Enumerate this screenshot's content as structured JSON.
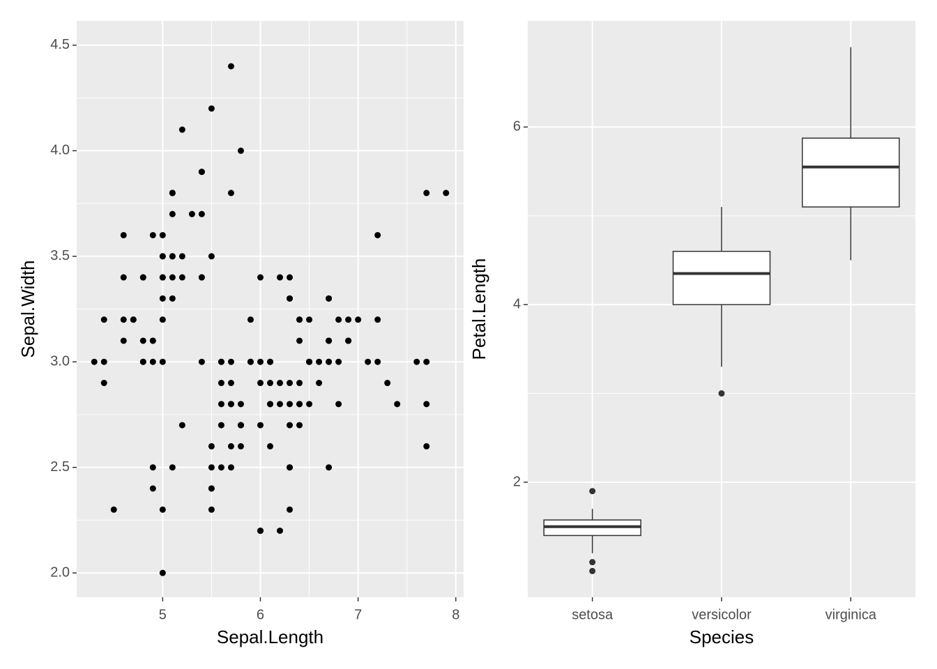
{
  "chart_data": [
    {
      "type": "scatter",
      "xlabel": "Sepal.Length",
      "ylabel": "Sepal.Width",
      "color": "#000000",
      "x": [
        5.1,
        4.9,
        4.7,
        4.6,
        5.0,
        5.4,
        4.6,
        5.0,
        4.4,
        4.9,
        5.4,
        4.8,
        4.8,
        4.3,
        5.8,
        5.7,
        5.4,
        5.1,
        5.7,
        5.1,
        5.4,
        5.1,
        4.6,
        5.1,
        4.8,
        5.0,
        5.0,
        5.2,
        5.2,
        4.7,
        4.8,
        5.4,
        5.2,
        5.5,
        4.9,
        5.0,
        5.5,
        4.9,
        4.4,
        5.1,
        5.0,
        4.5,
        4.4,
        5.0,
        5.1,
        4.8,
        5.1,
        4.6,
        5.3,
        5.0,
        7.0,
        6.4,
        6.9,
        5.5,
        6.5,
        5.7,
        6.3,
        4.9,
        6.6,
        5.2,
        5.0,
        5.9,
        6.0,
        6.1,
        5.6,
        6.7,
        5.6,
        5.8,
        6.2,
        5.6,
        5.9,
        6.1,
        6.3,
        6.1,
        6.4,
        6.6,
        6.8,
        6.7,
        6.0,
        5.7,
        5.5,
        5.5,
        5.8,
        6.0,
        5.4,
        6.0,
        6.7,
        6.3,
        5.6,
        5.5,
        5.5,
        6.1,
        5.8,
        5.0,
        5.6,
        5.7,
        5.7,
        6.2,
        5.1,
        5.7,
        6.3,
        5.8,
        7.1,
        6.3,
        6.5,
        7.6,
        4.9,
        7.3,
        6.7,
        7.2,
        6.5,
        6.4,
        6.8,
        5.7,
        5.8,
        6.4,
        6.5,
        7.7,
        7.7,
        6.0,
        6.9,
        5.6,
        7.7,
        6.3,
        6.7,
        7.2,
        6.2,
        6.1,
        6.4,
        7.2,
        7.4,
        7.9,
        6.4,
        6.3,
        6.1,
        7.7,
        6.3,
        6.4,
        6.0,
        6.9,
        6.7,
        6.9,
        5.8,
        6.8,
        6.7,
        6.7,
        6.3,
        6.5,
        6.2,
        5.9
      ],
      "values": [
        3.5,
        3.0,
        3.2,
        3.1,
        3.6,
        3.9,
        3.4,
        3.4,
        2.9,
        3.1,
        3.7,
        3.4,
        3.0,
        3.0,
        4.0,
        4.4,
        3.9,
        3.5,
        3.8,
        3.8,
        3.4,
        3.7,
        3.6,
        3.3,
        3.4,
        3.0,
        3.4,
        3.5,
        3.4,
        3.2,
        3.1,
        3.4,
        4.1,
        4.2,
        3.1,
        3.2,
        3.5,
        3.6,
        3.0,
        3.4,
        3.5,
        2.3,
        3.2,
        3.5,
        3.8,
        3.0,
        3.8,
        3.2,
        3.7,
        3.3,
        3.2,
        3.2,
        3.1,
        2.3,
        2.8,
        2.8,
        3.3,
        2.4,
        2.9,
        2.7,
        2.0,
        3.0,
        2.2,
        2.9,
        2.9,
        3.1,
        3.0,
        2.7,
        2.2,
        2.5,
        3.2,
        2.8,
        2.5,
        2.8,
        2.9,
        3.0,
        2.8,
        3.0,
        2.9,
        2.6,
        2.4,
        2.4,
        2.7,
        2.7,
        3.0,
        3.4,
        3.1,
        2.3,
        3.0,
        2.5,
        2.6,
        3.0,
        2.6,
        2.3,
        2.7,
        3.0,
        2.9,
        2.9,
        2.5,
        2.8,
        3.3,
        2.7,
        3.0,
        2.9,
        3.0,
        3.0,
        2.5,
        2.9,
        2.5,
        3.6,
        3.2,
        2.7,
        3.0,
        2.5,
        2.8,
        3.2,
        3.0,
        3.8,
        2.6,
        2.2,
        3.2,
        2.8,
        2.8,
        2.7,
        3.3,
        3.2,
        2.8,
        3.0,
        2.8,
        3.0,
        2.8,
        3.8,
        2.8,
        2.8,
        2.6,
        3.0,
        3.4,
        3.1,
        3.0,
        3.1,
        3.1,
        3.1,
        2.7,
        3.2,
        3.3,
        3.0,
        2.5,
        3.0,
        3.4,
        3.0
      ],
      "xlim": [
        4.12,
        8.08
      ],
      "xticks": [
        5,
        6,
        7,
        8
      ],
      "ylim": [
        1.885,
        4.615
      ],
      "yticks": [
        {
          "value": 2,
          "label": "2.0"
        },
        2.5,
        {
          "value": 3,
          "label": "3.0"
        },
        3.5,
        {
          "value": 4,
          "label": "4.0"
        },
        4.5
      ],
      "grid": true
    },
    {
      "type": "box",
      "xlabel": "Species",
      "ylabel": "Petal.Length",
      "color": "#333333",
      "categories": [
        "setosa",
        "versicolor",
        "virginica"
      ],
      "boxes": [
        {
          "min": 1.2,
          "q1": 1.4,
          "median": 1.5,
          "q3": 1.575,
          "max": 1.7,
          "outliers": [
            1.0,
            1.1,
            1.9
          ]
        },
        {
          "min": 3.3,
          "q1": 4.0,
          "median": 4.35,
          "q3": 4.6,
          "max": 5.1,
          "outliers": [
            3.0
          ]
        },
        {
          "min": 4.5,
          "q1": 5.1,
          "median": 5.55,
          "q3": 5.875,
          "max": 6.9,
          "outliers": []
        }
      ],
      "ylim": [
        0.705,
        7.195
      ],
      "yticks": [
        2,
        4,
        6
      ],
      "grid": true
    }
  ]
}
